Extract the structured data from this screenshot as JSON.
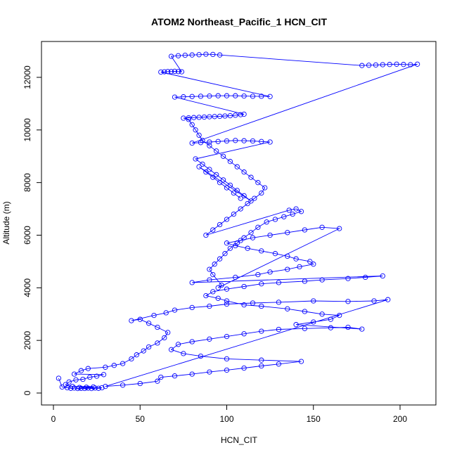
{
  "chart_data": {
    "type": "scatter",
    "title": "ATOM2 Northeast_Pacific_1 HCN_CIT",
    "xlabel": "HCN_CIT",
    "ylabel": "Altitude (m)",
    "xlim": [
      0,
      220
    ],
    "ylim": [
      -400,
      13300
    ],
    "x_ticks": [
      0,
      50,
      100,
      150,
      200
    ],
    "y_ticks": [
      0,
      2000,
      4000,
      6000,
      8000,
      10000,
      12000
    ],
    "grid": false,
    "legend": "none",
    "marker": "open-circle",
    "series": [
      {
        "color": "#0000ff",
        "points": [
          [
            3,
            560
          ],
          [
            5,
            230
          ],
          [
            8,
            200
          ],
          [
            10,
            180
          ],
          [
            12,
            190
          ],
          [
            14,
            170
          ],
          [
            16,
            180
          ],
          [
            18,
            175
          ],
          [
            20,
            185
          ],
          [
            22,
            170
          ],
          [
            24,
            190
          ],
          [
            26,
            180
          ],
          [
            28,
            200
          ],
          [
            15,
            210
          ],
          [
            19,
            220
          ],
          [
            23,
            230
          ],
          [
            11,
            250
          ],
          [
            7,
            320
          ],
          [
            9,
            420
          ],
          [
            13,
            500
          ],
          [
            17,
            520
          ],
          [
            21,
            600
          ],
          [
            25,
            640
          ],
          [
            29,
            700
          ],
          [
            12,
            720
          ],
          [
            16,
            850
          ],
          [
            20,
            930
          ],
          [
            30,
            980
          ],
          [
            35,
            1050
          ],
          [
            40,
            1120
          ],
          [
            45,
            1300
          ],
          [
            48,
            1450
          ],
          [
            52,
            1600
          ],
          [
            55,
            1750
          ],
          [
            60,
            1900
          ],
          [
            64,
            2100
          ],
          [
            66,
            2300
          ],
          [
            60,
            2500
          ],
          [
            55,
            2650
          ],
          [
            50,
            2800
          ],
          [
            45,
            2750
          ],
          [
            58,
            2950
          ],
          [
            65,
            3050
          ],
          [
            70,
            3150
          ],
          [
            80,
            3250
          ],
          [
            90,
            3300
          ],
          [
            100,
            3380
          ],
          [
            115,
            3420
          ],
          [
            130,
            3450
          ],
          [
            150,
            3500
          ],
          [
            170,
            3480
          ],
          [
            185,
            3500
          ],
          [
            193,
            3550
          ],
          [
            30,
            250
          ],
          [
            40,
            300
          ],
          [
            50,
            360
          ],
          [
            60,
            450
          ],
          [
            62,
            600
          ],
          [
            70,
            650
          ],
          [
            80,
            720
          ],
          [
            90,
            800
          ],
          [
            100,
            870
          ],
          [
            110,
            950
          ],
          [
            120,
            1030
          ],
          [
            130,
            1100
          ],
          [
            143,
            1200
          ],
          [
            120,
            1250
          ],
          [
            100,
            1300
          ],
          [
            85,
            1400
          ],
          [
            75,
            1500
          ],
          [
            68,
            1650
          ],
          [
            72,
            1850
          ],
          [
            80,
            1950
          ],
          [
            90,
            2050
          ],
          [
            100,
            2150
          ],
          [
            110,
            2250
          ],
          [
            120,
            2350
          ],
          [
            130,
            2420
          ],
          [
            145,
            2450
          ],
          [
            160,
            2480
          ],
          [
            170,
            2500
          ],
          [
            178,
            2430
          ],
          [
            140,
            2600
          ],
          [
            150,
            2700
          ],
          [
            160,
            2800
          ],
          [
            165,
            2950
          ],
          [
            155,
            3000
          ],
          [
            145,
            3100
          ],
          [
            135,
            3200
          ],
          [
            120,
            3300
          ],
          [
            110,
            3350
          ],
          [
            100,
            3500
          ],
          [
            95,
            3600
          ],
          [
            88,
            3700
          ],
          [
            92,
            3850
          ],
          [
            100,
            3950
          ],
          [
            110,
            4050
          ],
          [
            120,
            4150
          ],
          [
            130,
            4200
          ],
          [
            145,
            4250
          ],
          [
            155,
            4300
          ],
          [
            170,
            4350
          ],
          [
            180,
            4400
          ],
          [
            190,
            4450
          ],
          [
            80,
            4200
          ],
          [
            90,
            4300
          ],
          [
            105,
            4400
          ],
          [
            118,
            4500
          ],
          [
            125,
            4600
          ],
          [
            135,
            4700
          ],
          [
            142,
            4800
          ],
          [
            150,
            4900
          ],
          [
            148,
            5000
          ],
          [
            140,
            5100
          ],
          [
            135,
            5200
          ],
          [
            128,
            5300
          ],
          [
            120,
            5400
          ],
          [
            112,
            5500
          ],
          [
            105,
            5600
          ],
          [
            100,
            5700
          ],
          [
            108,
            5800
          ],
          [
            115,
            5900
          ],
          [
            125,
            6000
          ],
          [
            135,
            6100
          ],
          [
            145,
            6200
          ],
          [
            155,
            6300
          ],
          [
            165,
            6250
          ],
          [
            95,
            4000
          ],
          [
            97,
            4100
          ],
          [
            92,
            4500
          ],
          [
            90,
            4700
          ],
          [
            93,
            4900
          ],
          [
            96,
            5100
          ],
          [
            99,
            5300
          ],
          [
            102,
            5500
          ],
          [
            106,
            5700
          ],
          [
            110,
            5900
          ],
          [
            114,
            6100
          ],
          [
            118,
            6300
          ],
          [
            123,
            6500
          ],
          [
            128,
            6600
          ],
          [
            133,
            6700
          ],
          [
            138,
            6800
          ],
          [
            143,
            6900
          ],
          [
            140,
            7000
          ],
          [
            136,
            6950
          ],
          [
            88,
            6000
          ],
          [
            92,
            6200
          ],
          [
            96,
            6400
          ],
          [
            100,
            6600
          ],
          [
            104,
            6800
          ],
          [
            108,
            7000
          ],
          [
            112,
            7200
          ],
          [
            116,
            7400
          ],
          [
            120,
            7600
          ],
          [
            122,
            7800
          ],
          [
            118,
            8000
          ],
          [
            114,
            8200
          ],
          [
            110,
            8400
          ],
          [
            106,
            8600
          ],
          [
            102,
            8800
          ],
          [
            98,
            9000
          ],
          [
            94,
            9200
          ],
          [
            90,
            9400
          ],
          [
            86,
            9600
          ],
          [
            84,
            9800
          ],
          [
            82,
            10000
          ],
          [
            80,
            10200
          ],
          [
            78,
            10400
          ],
          [
            75,
            10450
          ],
          [
            78,
            10460
          ],
          [
            81,
            10470
          ],
          [
            84,
            10480
          ],
          [
            87,
            10490
          ],
          [
            90,
            10500
          ],
          [
            93,
            10510
          ],
          [
            96,
            10520
          ],
          [
            99,
            10530
          ],
          [
            102,
            10540
          ],
          [
            105,
            10560
          ],
          [
            108,
            10580
          ],
          [
            110,
            10600
          ],
          [
            70,
            11250
          ],
          [
            75,
            11260
          ],
          [
            80,
            11270
          ],
          [
            85,
            11280
          ],
          [
            90,
            11290
          ],
          [
            95,
            11300
          ],
          [
            100,
            11300
          ],
          [
            105,
            11300
          ],
          [
            110,
            11290
          ],
          [
            115,
            11280
          ],
          [
            120,
            11280
          ],
          [
            125,
            11270
          ],
          [
            62,
            12200
          ],
          [
            64,
            12210
          ],
          [
            66,
            12220
          ],
          [
            68,
            12220
          ],
          [
            70,
            12230
          ],
          [
            72,
            12220
          ],
          [
            74,
            12210
          ],
          [
            68,
            12800
          ],
          [
            72,
            12820
          ],
          [
            76,
            12840
          ],
          [
            80,
            12850
          ],
          [
            84,
            12860
          ],
          [
            88,
            12880
          ],
          [
            92,
            12870
          ],
          [
            96,
            12850
          ],
          [
            178,
            12450
          ],
          [
            182,
            12460
          ],
          [
            186,
            12470
          ],
          [
            190,
            12480
          ],
          [
            194,
            12490
          ],
          [
            198,
            12500
          ],
          [
            202,
            12490
          ],
          [
            206,
            12480
          ],
          [
            210,
            12500
          ],
          [
            80,
            9500
          ],
          [
            85,
            9520
          ],
          [
            90,
            9540
          ],
          [
            95,
            9560
          ],
          [
            100,
            9580
          ],
          [
            105,
            9600
          ],
          [
            110,
            9590
          ],
          [
            115,
            9580
          ],
          [
            120,
            9560
          ],
          [
            125,
            9540
          ],
          [
            82,
            8900
          ],
          [
            86,
            8700
          ],
          [
            90,
            8500
          ],
          [
            94,
            8300
          ],
          [
            98,
            8100
          ],
          [
            102,
            7900
          ],
          [
            106,
            7700
          ],
          [
            110,
            7500
          ],
          [
            114,
            7300
          ],
          [
            84,
            8600
          ],
          [
            88,
            8400
          ],
          [
            92,
            8200
          ],
          [
            96,
            8000
          ],
          [
            100,
            7800
          ],
          [
            104,
            7600
          ],
          [
            108,
            7400
          ]
        ]
      }
    ]
  }
}
